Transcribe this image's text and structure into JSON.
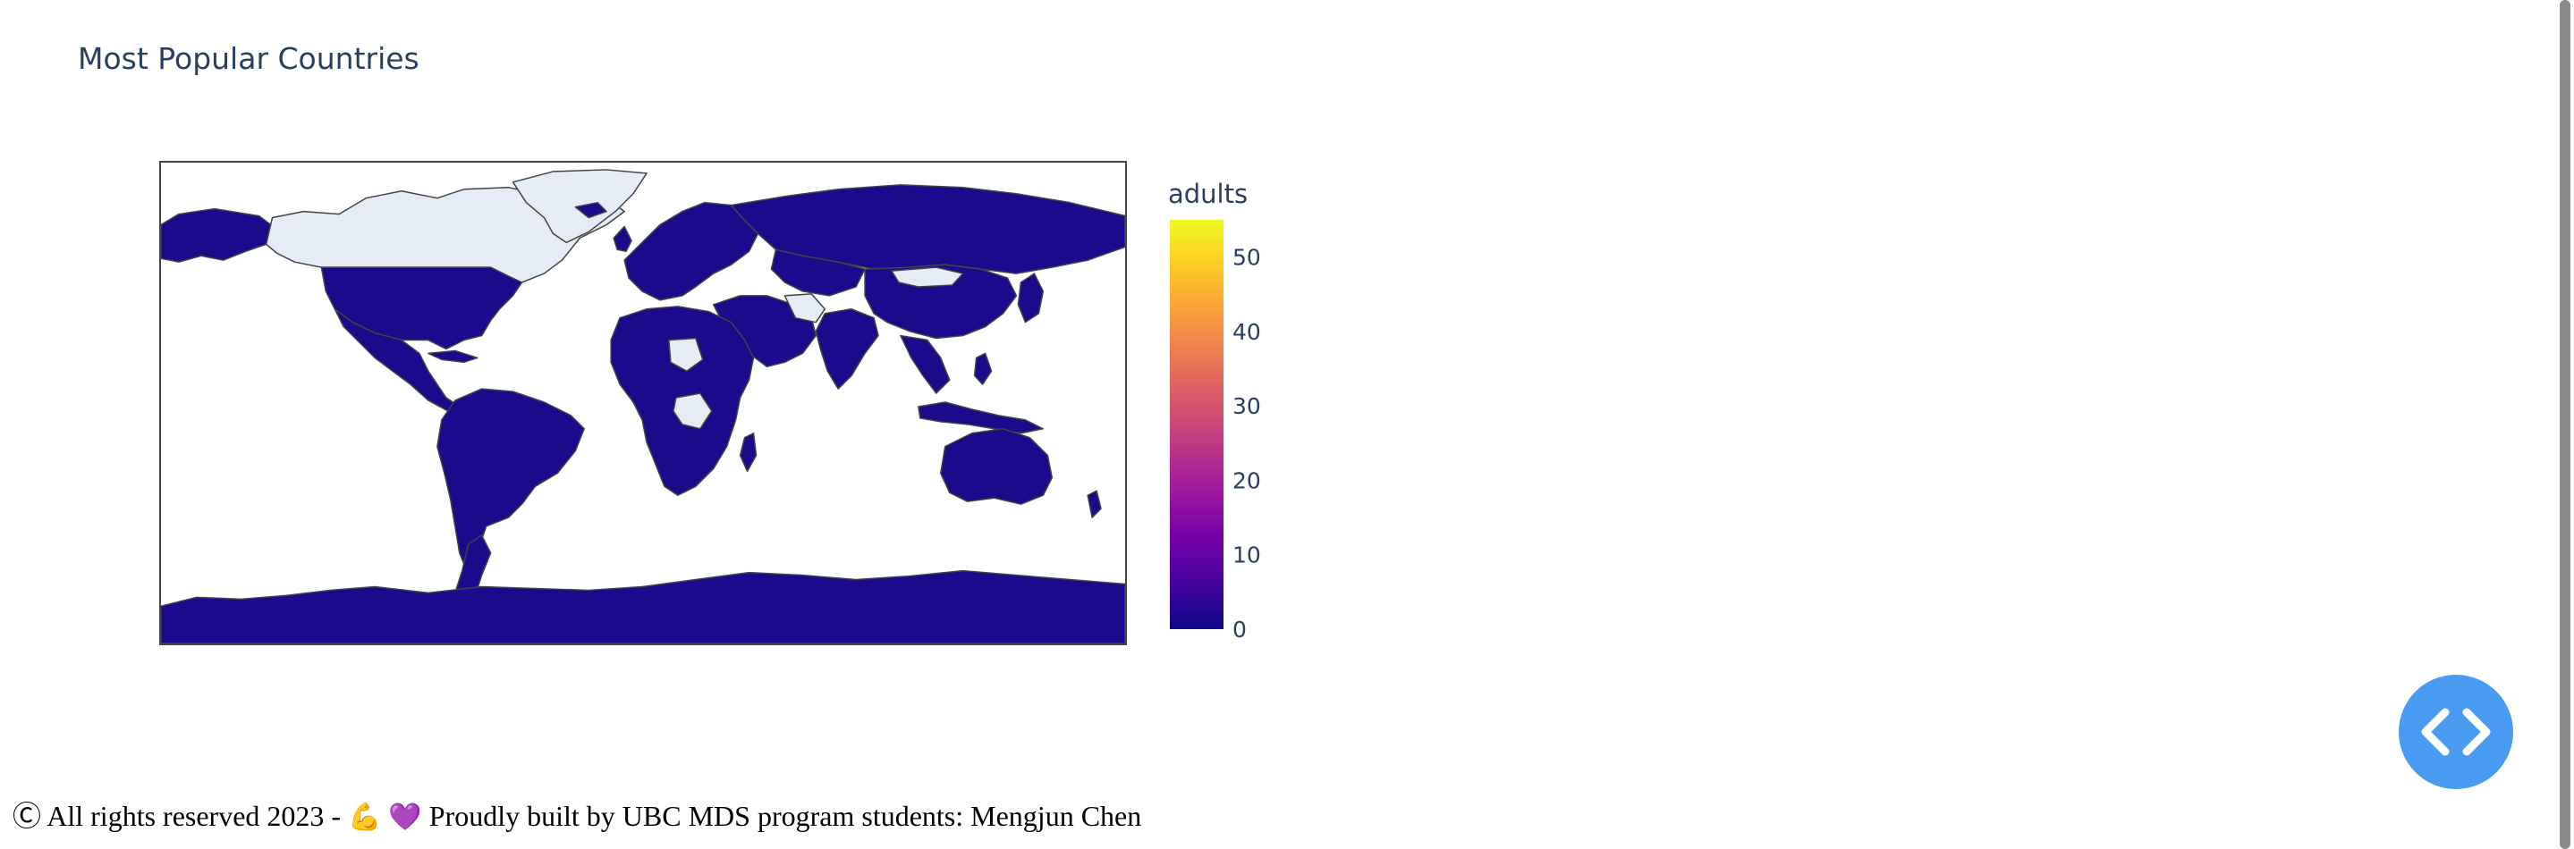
{
  "chart_data": {
    "type": "choropleth",
    "title": "Most Popular Countries",
    "colorbar": {
      "title": "adults",
      "ticks": [
        0,
        10,
        20,
        30,
        40,
        50
      ],
      "range": [
        0,
        55
      ],
      "colorscale": [
        "#0d0887",
        "#46039f",
        "#7201a8",
        "#9c179e",
        "#bd3786",
        "#d8576b",
        "#ed7953",
        "#fb9f3a",
        "#fdca26",
        "#f0f921"
      ]
    },
    "colors": {
      "no_data": "#e5ecf6",
      "border": "#444444",
      "land_low": "#1a0a8c"
    }
  },
  "footer": {
    "copyright_symbol": "Ⓒ",
    "text_before": "All rights reserved 2023 -",
    "emoji_1": "💪",
    "emoji_2": "💜",
    "text_after": "Proudly built by UBC MDS program students: Mengjun Chen"
  },
  "code_button": {
    "icon": "code-brackets-icon"
  }
}
